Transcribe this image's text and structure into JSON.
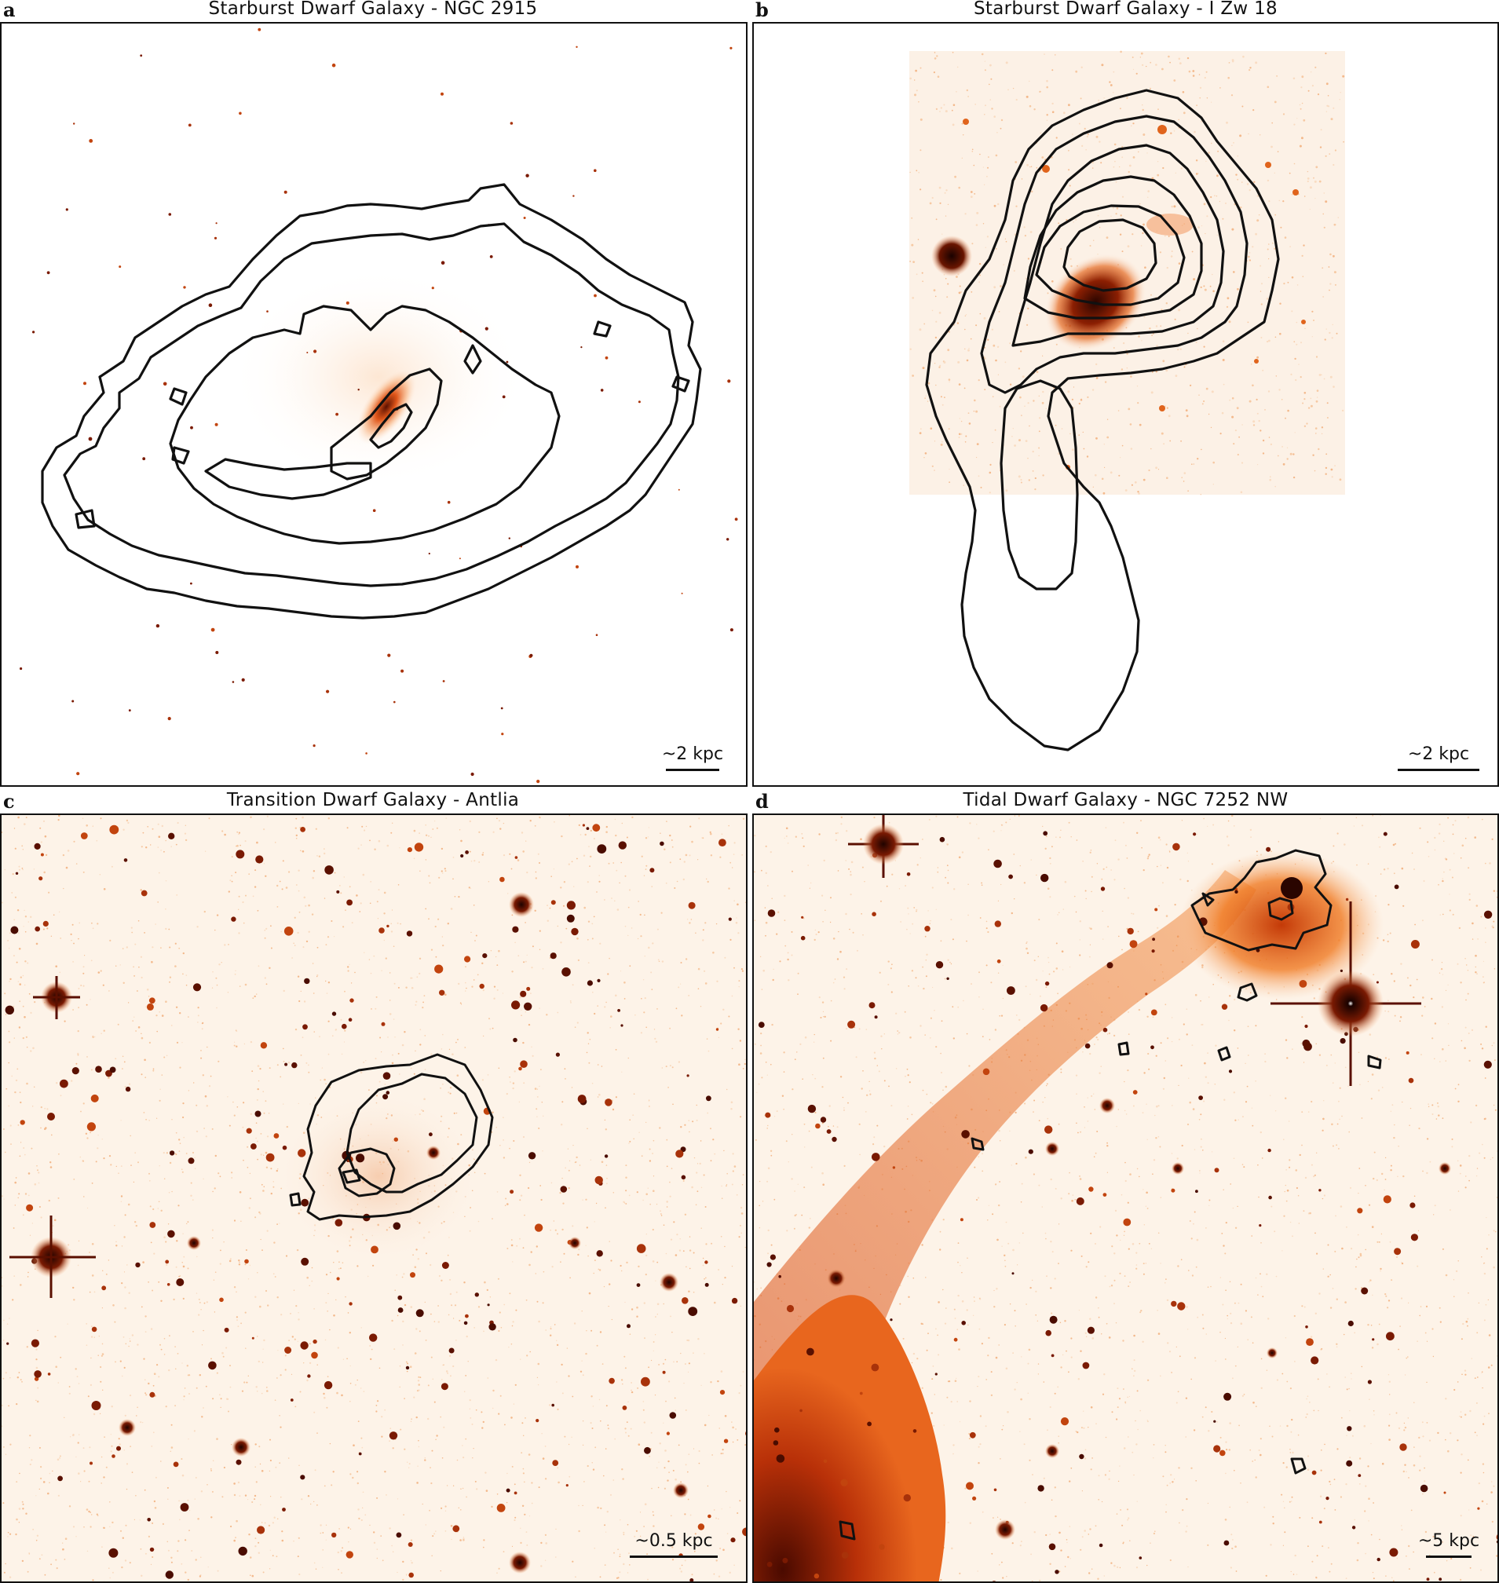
{
  "panels": [
    {
      "letter": "a",
      "title": "Starburst Dwarf Galaxy - NGC 2915",
      "scale": "~2 kpc"
    },
    {
      "letter": "b",
      "title": "Starburst Dwarf Galaxy - I Zw 18",
      "scale": "~2 kpc"
    },
    {
      "letter": "c",
      "title": "Transition Dwarf Galaxy - Antlia",
      "scale": "~0.5 kpc"
    },
    {
      "letter": "d",
      "title": "Tidal Dwarf Galaxy - NGC 7252 NW",
      "scale": "~5 kpc"
    }
  ],
  "colors": {
    "image_low": "#fdf3e8",
    "image_mid": "#f07a22",
    "image_high": "#3a0a00",
    "contour": "#111111"
  }
}
